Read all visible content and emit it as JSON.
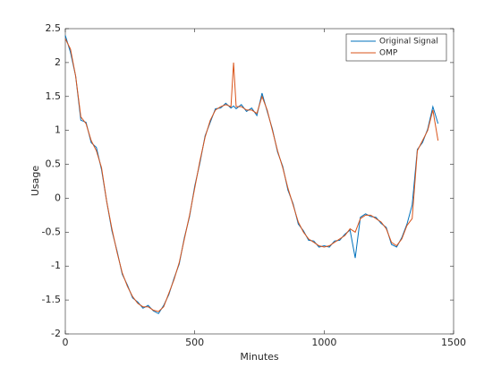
{
  "chart_data": {
    "type": "line",
    "xlabel": "Minutes",
    "ylabel": "Usage",
    "x": [
      0,
      20,
      40,
      60,
      80,
      100,
      120,
      140,
      160,
      180,
      200,
      220,
      240,
      260,
      280,
      300,
      320,
      340,
      360,
      380,
      400,
      420,
      440,
      460,
      480,
      500,
      520,
      540,
      560,
      580,
      600,
      620,
      640,
      650,
      660,
      680,
      700,
      720,
      740,
      760,
      780,
      800,
      820,
      840,
      860,
      880,
      900,
      920,
      940,
      960,
      980,
      1000,
      1020,
      1040,
      1060,
      1080,
      1100,
      1120,
      1140,
      1160,
      1180,
      1200,
      1220,
      1240,
      1260,
      1280,
      1300,
      1320,
      1340,
      1360,
      1380,
      1400,
      1420,
      1440
    ],
    "series": [
      {
        "name": "Original Signal",
        "color": "#0072bd",
        "values": [
          2.4,
          2.15,
          1.8,
          1.15,
          1.12,
          0.82,
          0.75,
          0.42,
          -0.05,
          -0.48,
          -0.78,
          -1.12,
          -1.28,
          -1.47,
          -1.53,
          -1.62,
          -1.58,
          -1.66,
          -1.7,
          -1.58,
          -1.42,
          -1.18,
          -0.97,
          -0.58,
          -0.27,
          0.18,
          0.52,
          0.92,
          1.12,
          1.32,
          1.33,
          1.4,
          1.33,
          1.36,
          1.32,
          1.38,
          1.28,
          1.33,
          1.22,
          1.55,
          1.28,
          1.02,
          0.68,
          0.47,
          0.12,
          -0.08,
          -0.38,
          -0.48,
          -0.62,
          -0.63,
          -0.72,
          -0.7,
          -0.72,
          -0.63,
          -0.62,
          -0.53,
          -0.47,
          -0.88,
          -0.28,
          -0.23,
          -0.27,
          -0.28,
          -0.37,
          -0.43,
          -0.68,
          -0.72,
          -0.58,
          -0.38,
          -0.1,
          0.72,
          0.82,
          1.02,
          1.35,
          1.1
        ]
      },
      {
        "name": "OMP",
        "color": "#d95319",
        "values": [
          2.35,
          2.2,
          1.8,
          1.2,
          1.1,
          0.85,
          0.7,
          0.45,
          -0.05,
          -0.45,
          -0.8,
          -1.1,
          -1.3,
          -1.45,
          -1.55,
          -1.6,
          -1.6,
          -1.65,
          -1.67,
          -1.6,
          -1.4,
          -1.2,
          -0.95,
          -0.6,
          -0.25,
          0.15,
          0.55,
          0.9,
          1.15,
          1.3,
          1.35,
          1.38,
          1.35,
          2.0,
          1.35,
          1.35,
          1.3,
          1.3,
          1.25,
          1.5,
          1.3,
          1.0,
          0.7,
          0.45,
          0.15,
          -0.1,
          -0.35,
          -0.5,
          -0.6,
          -0.65,
          -0.7,
          -0.72,
          -0.7,
          -0.65,
          -0.6,
          -0.55,
          -0.45,
          -0.5,
          -0.3,
          -0.25,
          -0.25,
          -0.3,
          -0.35,
          -0.45,
          -0.65,
          -0.7,
          -0.6,
          -0.4,
          -0.3,
          0.7,
          0.85,
          1.0,
          1.3,
          0.85
        ]
      }
    ],
    "xlim": [
      0,
      1500
    ],
    "xticks": [
      0,
      500,
      1000,
      1500
    ],
    "ylim": [
      -2,
      2.5
    ],
    "yticks": [
      -2,
      -1.5,
      -1,
      -0.5,
      0,
      0.5,
      1,
      1.5,
      2,
      2.5
    ],
    "legend": "upper right",
    "grid": false
  }
}
